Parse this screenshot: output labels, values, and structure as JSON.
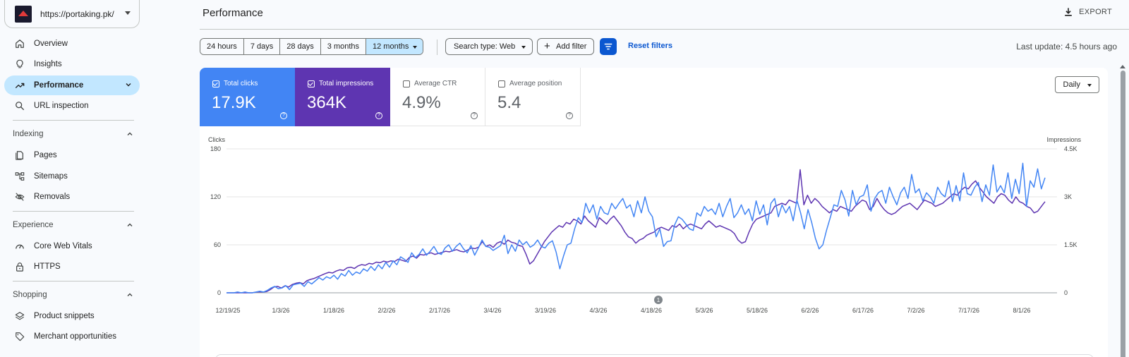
{
  "property": {
    "url": "https://portaking.pk/"
  },
  "nav": {
    "overview": "Overview",
    "insights": "Insights",
    "performance": "Performance",
    "url_inspection": "URL inspection",
    "indexing_title": "Indexing",
    "pages": "Pages",
    "sitemaps": "Sitemaps",
    "removals": "Removals",
    "experience_title": "Experience",
    "core_web_vitals": "Core Web Vitals",
    "https": "HTTPS",
    "shopping_title": "Shopping",
    "product_snippets": "Product snippets",
    "merchant_opportunities": "Merchant opportunities"
  },
  "header": {
    "title": "Performance",
    "export_label": "EXPORT"
  },
  "filters": {
    "ranges": [
      "24 hours",
      "7 days",
      "28 days",
      "3 months",
      "12 months"
    ],
    "selected_range": "12 months",
    "search_type": "Search type: Web",
    "add_filter": "Add filter",
    "reset": "Reset filters",
    "last_update": "Last update: 4.5 hours ago"
  },
  "metrics": {
    "clicks": {
      "label": "Total clicks",
      "value": "17.9K",
      "checked": true
    },
    "impressions": {
      "label": "Total impressions",
      "value": "364K",
      "checked": true
    },
    "ctr": {
      "label": "Average CTR",
      "value": "4.9%",
      "checked": false
    },
    "position": {
      "label": "Average position",
      "value": "5.4",
      "checked": false
    }
  },
  "granularity": "Daily",
  "colors": {
    "clicks": "#4285f4",
    "impressions": "#5e35b1",
    "accent": "#0b57d0",
    "selected": "#c2e7ff"
  },
  "chart_data": {
    "type": "line",
    "ylabel": "Clicks",
    "y2label": "Impressions",
    "ylim": [
      0,
      180
    ],
    "y2lim": [
      0,
      4500
    ],
    "yticks": [
      "180",
      "120",
      "60",
      "0"
    ],
    "y2ticks": [
      "4.5K",
      "3K",
      "1.5K",
      "0"
    ],
    "xticks": [
      "12/19/25",
      "1/3/26",
      "1/18/26",
      "2/2/26",
      "2/17/26",
      "3/4/26",
      "3/19/26",
      "4/3/26",
      "4/18/26",
      "5/3/26",
      "5/18/26",
      "6/2/26",
      "6/17/26",
      "7/2/26",
      "7/17/26",
      "8/1/26"
    ],
    "annotation": "1",
    "grid": true,
    "series": [
      {
        "name": "Total clicks",
        "axis": "left",
        "values": [
          0,
          0,
          0,
          1,
          0,
          1,
          0,
          0,
          1,
          2,
          1,
          3,
          6,
          8,
          5,
          6,
          9,
          4,
          10,
          11,
          12,
          8,
          14,
          11,
          15,
          19,
          16,
          20,
          18,
          22,
          17,
          24,
          21,
          28,
          22,
          26,
          24,
          30,
          27,
          33,
          28,
          35,
          30,
          38,
          32,
          40,
          35,
          45,
          42,
          38,
          50,
          44,
          48,
          55,
          47,
          52,
          58,
          50,
          48,
          56,
          60,
          52,
          58,
          62,
          55,
          50,
          59,
          47,
          56,
          66,
          58,
          57,
          53,
          56,
          59,
          72,
          49,
          60,
          52,
          66,
          60,
          64,
          57,
          60,
          66,
          58,
          56,
          62,
          65,
          51,
          30,
          46,
          60,
          62,
          80,
          94,
          88,
          112,
          100,
          110,
          92,
          108,
          100,
          98,
          112,
          105,
          112,
          118,
          106,
          110,
          95,
          115,
          100,
          120,
          102,
          95,
          70,
          80,
          58,
          64,
          65,
          85,
          95,
          92,
          86,
          80,
          78,
          100,
          96,
          108,
          102,
          105,
          98,
          112,
          95,
          108,
          118,
          94,
          100,
          110,
          98,
          105,
          90,
          115,
          98,
          110,
          85,
          112,
          118,
          95,
          110,
          100,
          108,
          90,
          116,
          100,
          80,
          104,
          88,
          68,
          55,
          60,
          78,
          94,
          110,
          108,
          128,
          116,
          96,
          128,
          110,
          120,
          122,
          135,
          102,
          118,
          125,
          128,
          112,
          132,
          120,
          110,
          125,
          132,
          118,
          148,
          125,
          130,
          115,
          125,
          120,
          112,
          132,
          124,
          120,
          140,
          114,
          134,
          115,
          150,
          124,
          122,
          132,
          138,
          114,
          135,
          122,
          160,
          126,
          134,
          125,
          150,
          118,
          142,
          124,
          162,
          108,
          140,
          132,
          155,
          130,
          144
        ],
        "note": "approximate daily click counts (0-180 scale)"
      },
      {
        "name": "Total impressions",
        "axis": "right",
        "values": [
          0,
          0,
          0,
          0,
          0,
          0,
          0,
          0,
          20,
          30,
          25,
          40,
          100,
          180,
          200,
          150,
          220,
          180,
          260,
          300,
          320,
          280,
          380,
          420,
          450,
          500,
          550,
          600,
          640,
          620,
          680,
          720,
          700,
          780,
          800,
          760,
          840,
          880,
          860,
          920,
          900,
          960,
          940,
          990,
          960,
          1000,
          980,
          1050,
          1020,
          980,
          1100,
          1150,
          1080,
          1200,
          1180,
          1220,
          1250,
          1200,
          1230,
          1260,
          1300,
          1280,
          1320,
          1350,
          1300,
          1280,
          1340,
          1400,
          1380,
          1430,
          1600,
          1450,
          1500,
          1420,
          1550,
          1600,
          1520,
          1650,
          1580,
          1550,
          1480,
          1450,
          1200,
          900,
          1000,
          1200,
          1400,
          1600,
          1750,
          1900,
          2000,
          2100,
          2050,
          2200,
          2150,
          2300,
          2250,
          2150,
          2400,
          2250,
          2150,
          2050,
          2350,
          2250,
          2150,
          2300,
          2400,
          2250,
          2100,
          1900,
          1750,
          1700,
          1550,
          1650,
          1700,
          1800,
          1850,
          1900,
          2000,
          2050,
          2000,
          1950,
          2100,
          2050,
          2150,
          2000,
          2100,
          2150,
          2100,
          2050,
          2000,
          2150,
          2250,
          2150,
          2050,
          2100,
          2050,
          2000,
          1950,
          1850,
          1650,
          1550,
          1600,
          1900,
          2150,
          2300,
          2350,
          2400,
          2450,
          2500,
          2700,
          2750,
          2800,
          2750,
          2900,
          2850,
          2800,
          3850,
          2750,
          3050,
          2800,
          2950,
          2850,
          2700,
          2600,
          2500,
          2600,
          2550,
          2700,
          2650,
          2600,
          2550,
          2700,
          2800,
          2900,
          2850,
          2600,
          2700,
          2950,
          2750,
          2600,
          2500,
          2450,
          2500,
          2600,
          2700,
          2750,
          2800,
          2700,
          2600,
          2750,
          2900,
          2850,
          2800,
          2700,
          2750,
          2800,
          2900,
          3000,
          3100,
          3050,
          3200,
          3300,
          3250,
          3400,
          3500,
          3300,
          3150,
          3000,
          2900,
          2800,
          3000,
          3100,
          3050,
          2900,
          2800,
          3000,
          2850,
          2800,
          2700,
          2650,
          2500,
          2550,
          2700,
          2850
        ],
        "note": "approximate daily impression counts (0-4.5K scale)"
      }
    ]
  }
}
